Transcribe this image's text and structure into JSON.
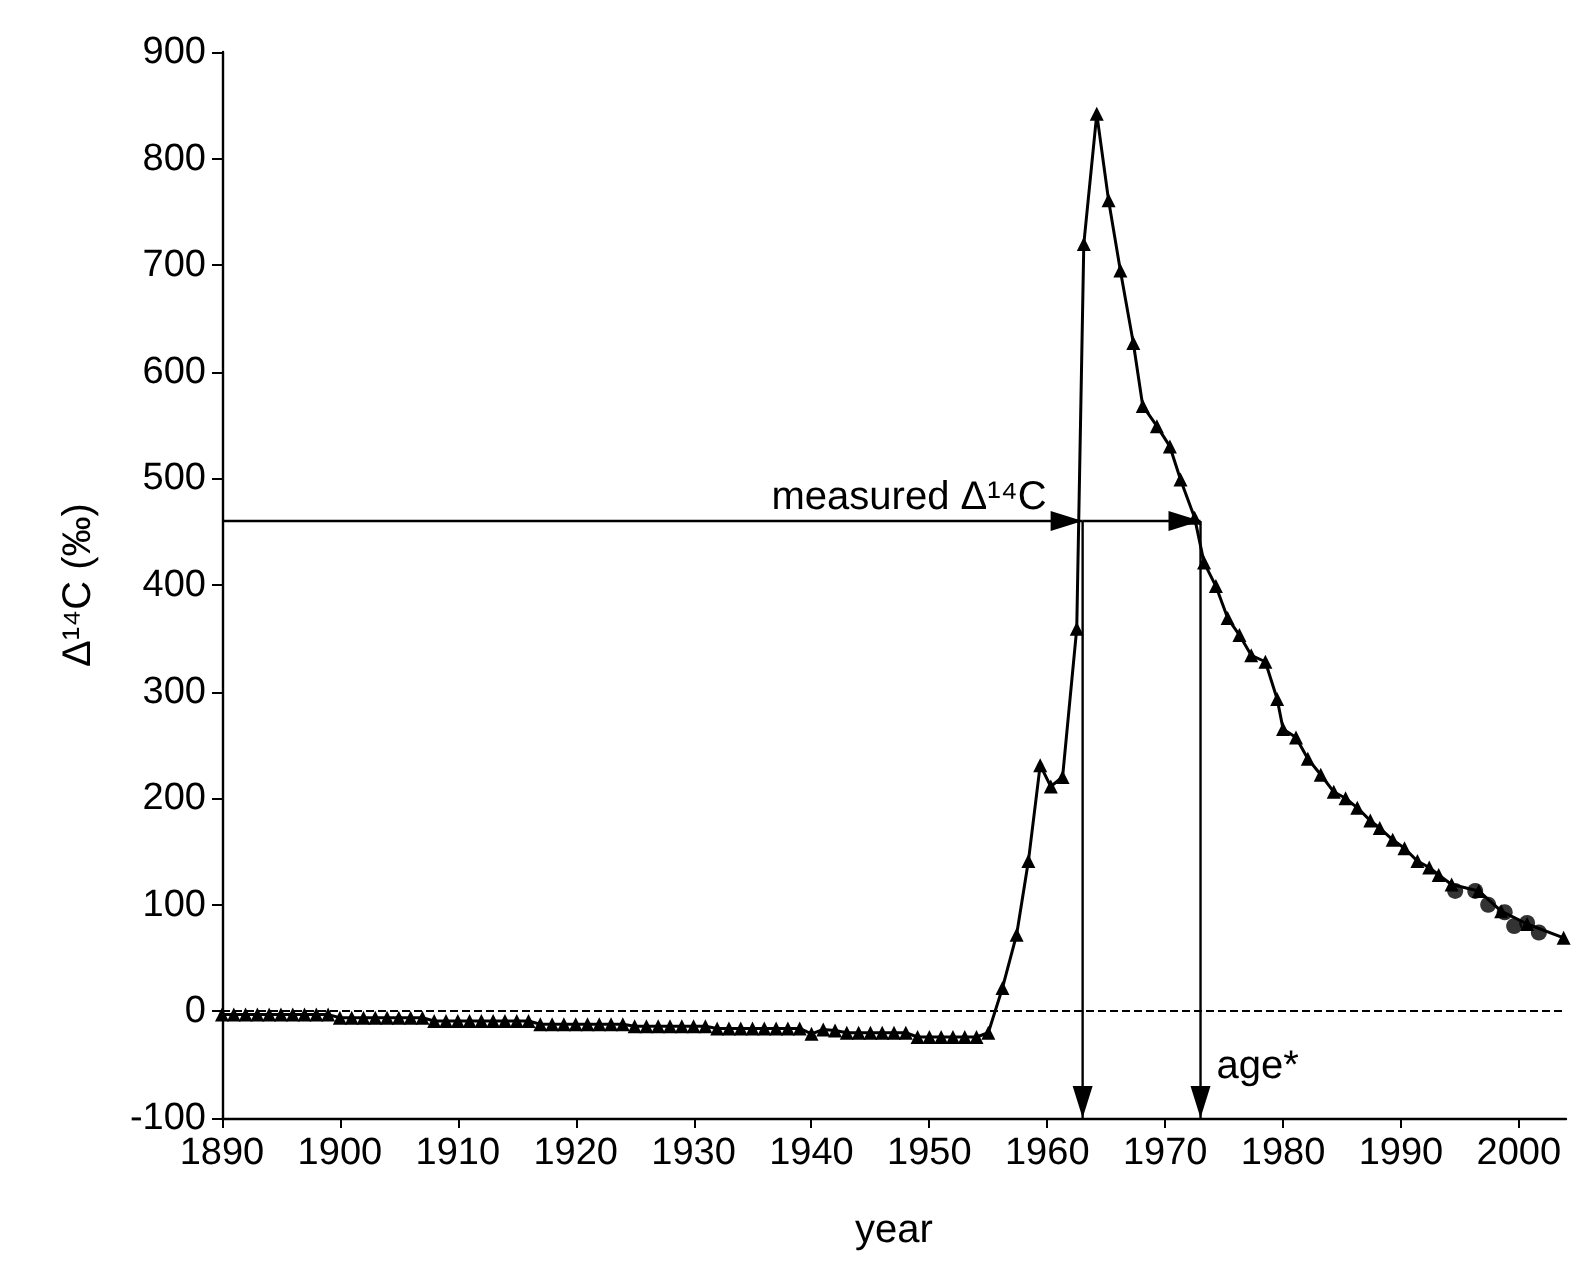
{
  "chart_data": {
    "type": "line",
    "xlabel": "year",
    "ylabel": "Δ¹⁴C (‰)",
    "xlim": [
      1890,
      2004
    ],
    "xticks": [
      1890,
      1900,
      1910,
      1920,
      1930,
      1940,
      1950,
      1960,
      1970,
      1980,
      1990,
      2000
    ],
    "ylim": [
      -100,
      900
    ],
    "yticks": [
      -100,
      0,
      100,
      200,
      300,
      400,
      500,
      600,
      700,
      800,
      900
    ],
    "grid": false,
    "series": [
      {
        "color": "#000000",
        "marker": "triangle",
        "line_style": "solid",
        "x": [
          1890,
          1891,
          1892,
          1893,
          1894,
          1895,
          1896,
          1897,
          1898,
          1899,
          1900,
          1901,
          1902,
          1903,
          1904,
          1905,
          1906,
          1907,
          1908,
          1909,
          1910,
          1911,
          1912,
          1913,
          1914,
          1915,
          1916,
          1917,
          1918,
          1919,
          1920,
          1921,
          1922,
          1923,
          1924,
          1925,
          1926,
          1927,
          1928,
          1929,
          1930,
          1931,
          1932,
          1933,
          1934,
          1935,
          1936,
          1937,
          1938,
          1939,
          1940,
          1941,
          1942,
          1943,
          1944,
          1945,
          1946,
          1947,
          1948,
          1949,
          1950,
          1951,
          1952,
          1953,
          1954,
          1955,
          1956.2,
          1957.4,
          1958.4,
          1959.4,
          1960.3,
          1961.3,
          1962.5,
          1963.1,
          1964.2,
          1965.2,
          1966.2,
          1967.3,
          1968.1,
          1969.3,
          1970.4,
          1971.3,
          1972.5,
          1973.3,
          1974.3,
          1975.3,
          1976.3,
          1977.3,
          1978.5,
          1979.5,
          1980,
          1981.1,
          1982.1,
          1983.2,
          1984.3,
          1985.3,
          1986.3,
          1987.4,
          1988.2,
          1989.3,
          1990.3,
          1991.4,
          1992.4,
          1993.2,
          1994.3,
          1996.6,
          1998.5,
          2000.7,
          2003.8
        ],
        "values": [
          -3,
          -3,
          -3,
          -3,
          -3,
          -3,
          -3,
          -3,
          -3,
          -3,
          -6,
          -6,
          -6,
          -6,
          -6,
          -6,
          -6,
          -6,
          -9,
          -9,
          -9,
          -9,
          -9,
          -9,
          -9,
          -9,
          -9,
          -12,
          -12,
          -12,
          -12,
          -12,
          -12,
          -12,
          -12,
          -14,
          -14,
          -14,
          -14,
          -14,
          -14,
          -14,
          -16,
          -16,
          -16,
          -16,
          -16,
          -16,
          -16,
          -16,
          -21,
          -17,
          -18,
          -20,
          -20,
          -20,
          -20,
          -20,
          -20,
          -24,
          -24,
          -24,
          -24,
          -24,
          -24,
          -20,
          22,
          72,
          141,
          231,
          211,
          220,
          359,
          720,
          842,
          761,
          695,
          627,
          568,
          549,
          530,
          499,
          463,
          421,
          399,
          369,
          353,
          334,
          328,
          293,
          265,
          257,
          237,
          222,
          206,
          200,
          191,
          179,
          172,
          161,
          153,
          141,
          135,
          128,
          119,
          113,
          94,
          82,
          69
        ]
      },
      {
        "type": "scatter",
        "color": "#000000",
        "marker": "circle",
        "x": [
          1994.6,
          1996.3,
          1997.4,
          1998.8,
          1999.6,
          2000.7,
          2001.7
        ],
        "values": [
          113,
          113,
          100,
          93,
          80,
          83,
          74
        ]
      }
    ],
    "ref_lines": [
      {
        "axis": "y",
        "value": 0,
        "color": "#000000",
        "line_style": "dashed"
      }
    ],
    "annotations": [
      {
        "text": "measured Δ¹⁴C",
        "x": 1963,
        "y": 460
      },
      {
        "text": "age*",
        "x": 1973,
        "y": 460
      }
    ]
  }
}
